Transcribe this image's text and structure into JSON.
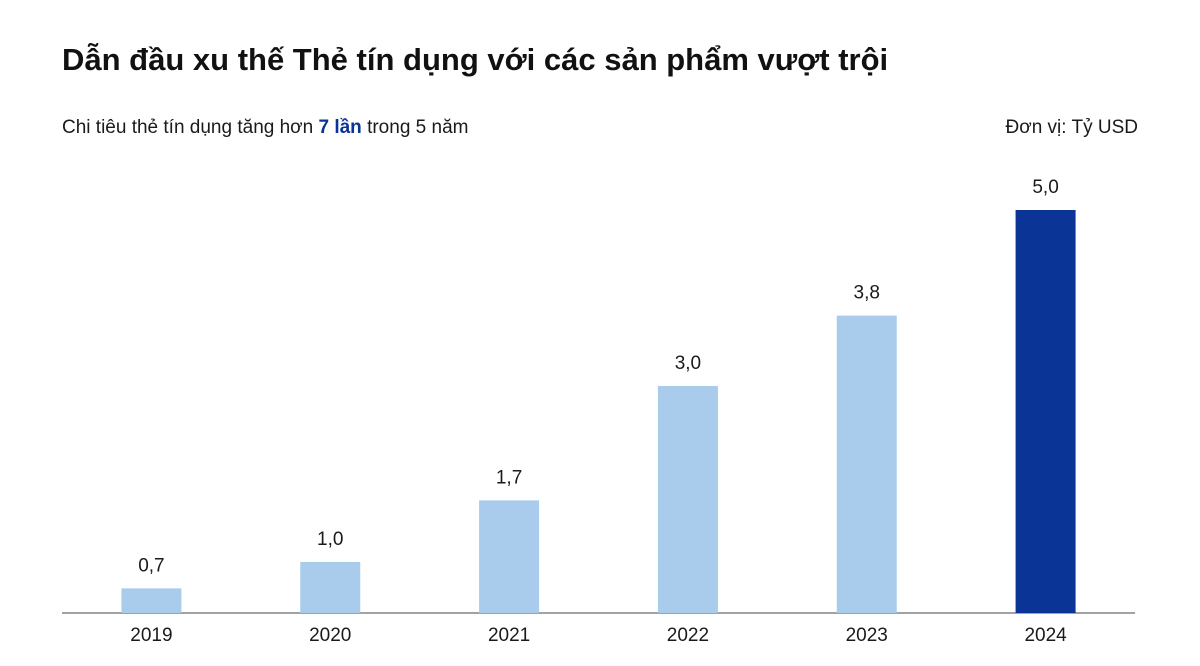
{
  "chart_data": {
    "type": "bar",
    "title": "Dẫn đầu xu thế Thẻ tín dụng với các sản phẩm vượt trội",
    "subtitle": [
      "Chi tiêu thẻ tín dụng tăng hơn",
      "7 lần",
      "trong 5 năm"
    ],
    "unit": "Đơn vị: Tỷ USD",
    "categories": [
      "2019",
      "2020",
      "2021",
      "2022",
      "2023",
      "2024"
    ],
    "values": [
      0.7,
      1.0,
      1.7,
      3.0,
      3.8,
      5.0
    ],
    "value_labels": [
      "0,7",
      "1,0",
      "1,7",
      "3,0",
      "3,8",
      "5,0"
    ],
    "colors": [
      "#a9cbec",
      "#a9cbec",
      "#a9cbec",
      "#a9cbec",
      "#a9cbec",
      "#0a3496"
    ],
    "ylim": [
      0.42,
      5.0
    ],
    "grid": false
  }
}
